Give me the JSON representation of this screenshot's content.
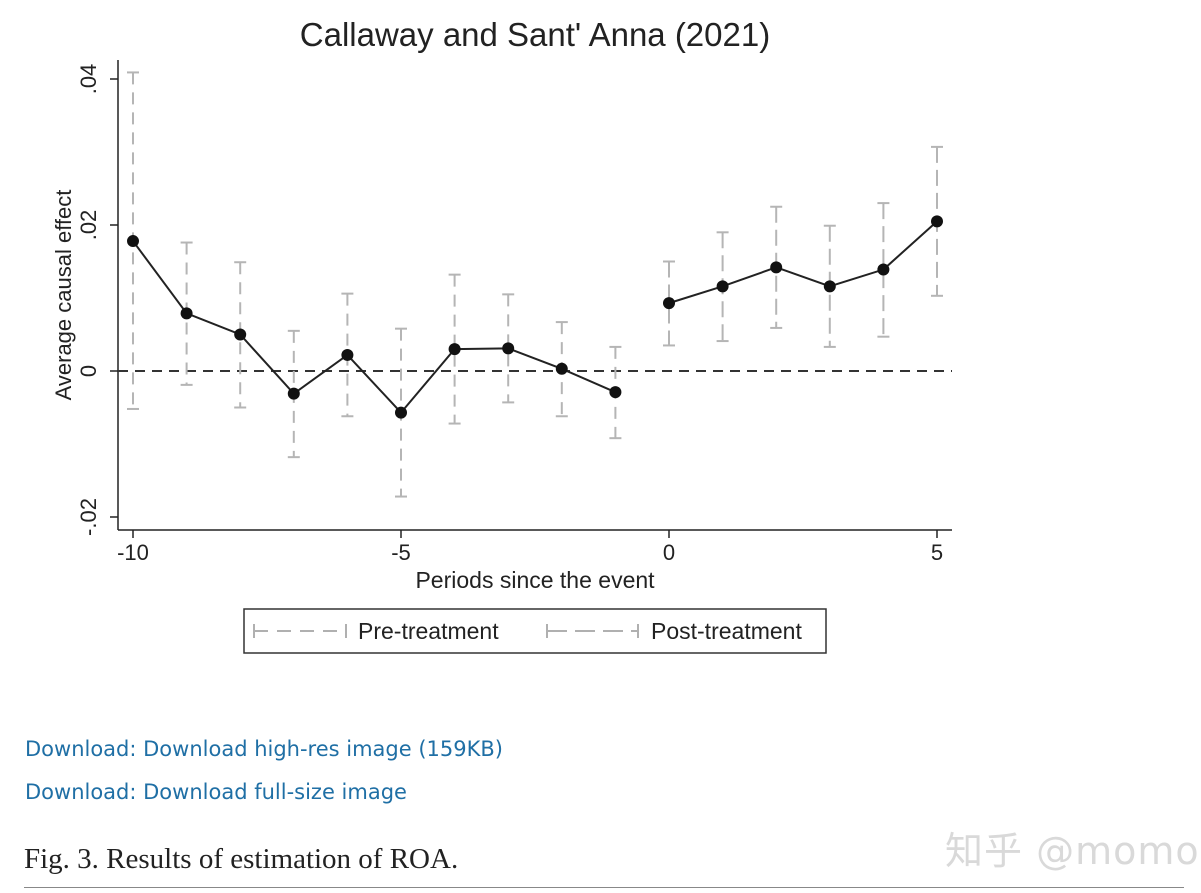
{
  "chart_data": {
    "type": "line",
    "title": "Callaway and Sant' Anna (2021)",
    "xlabel": "Periods since the event",
    "ylabel": "Average causal effect",
    "xlim": [
      -10,
      5
    ],
    "ylim": [
      -0.02,
      0.04
    ],
    "xticks": [
      -10,
      -5,
      0,
      5
    ],
    "xtick_labels": [
      "-10",
      "-5",
      "0",
      "5"
    ],
    "yticks": [
      -0.02,
      0,
      0.02,
      0.04
    ],
    "ytick_labels": [
      "-.02",
      "0",
      ".02",
      ".04"
    ],
    "reference_line": 0,
    "legend": [
      "Pre-treatment",
      "Post-treatment"
    ],
    "series": [
      {
        "name": "Pre-treatment",
        "x": [
          -10,
          -9,
          -8,
          -7,
          -6,
          -5,
          -4,
          -3,
          -2,
          -1
        ],
        "values": [
          0.0178,
          0.0079,
          0.005,
          -0.0031,
          0.0022,
          -0.0057,
          0.003,
          0.0031,
          0.0003,
          -0.0029
        ],
        "ci_lower": [
          -0.0052,
          -0.0019,
          -0.005,
          -0.0118,
          -0.0062,
          -0.0172,
          -0.0072,
          -0.0043,
          -0.0062,
          -0.0092
        ],
        "ci_upper": [
          0.0409,
          0.0176,
          0.0149,
          0.0055,
          0.0106,
          0.0058,
          0.0132,
          0.0105,
          0.0067,
          0.0033
        ]
      },
      {
        "name": "Post-treatment",
        "x": [
          0,
          1,
          2,
          3,
          4,
          5
        ],
        "values": [
          0.0093,
          0.0116,
          0.0142,
          0.0116,
          0.0139,
          0.0205
        ],
        "ci_lower": [
          0.0035,
          0.0041,
          0.0059,
          0.0033,
          0.0047,
          0.0103
        ],
        "ci_upper": [
          0.015,
          0.019,
          0.0225,
          0.0199,
          0.023,
          0.0307
        ]
      }
    ]
  },
  "links": {
    "download_highres": "Download: Download high-res image (159KB)",
    "download_fullsize": "Download: Download full-size image"
  },
  "caption": "Fig. 3. Results of estimation of ROA.",
  "watermark": "知乎 @momo"
}
